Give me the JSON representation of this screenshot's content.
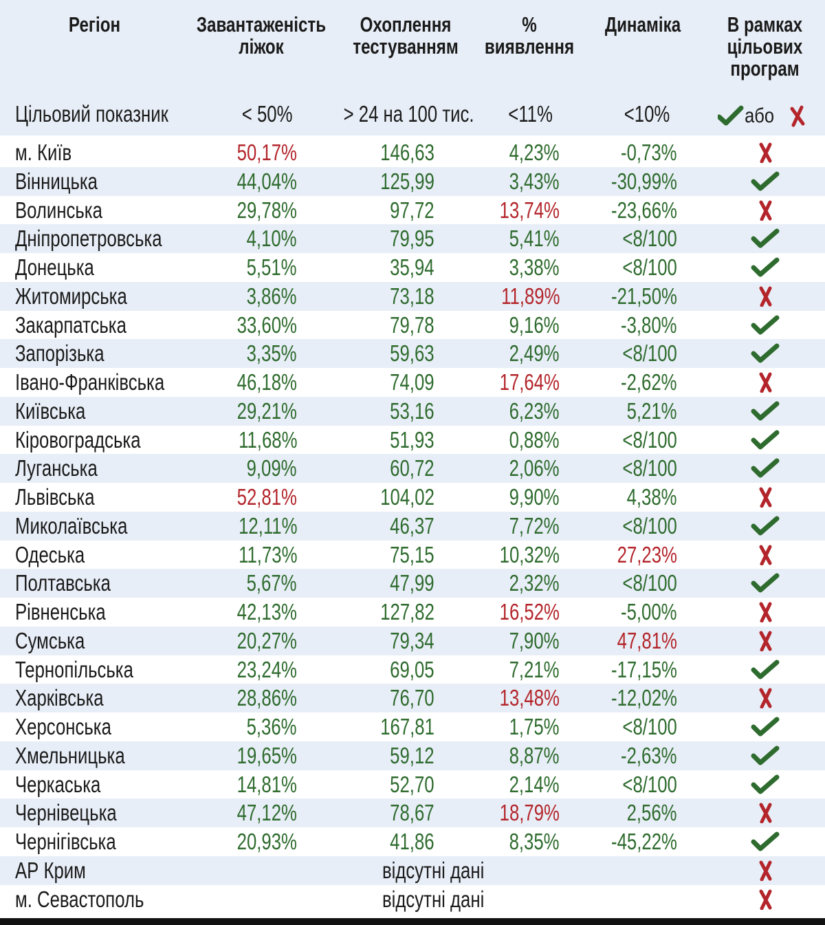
{
  "header": {
    "region": "Регіон",
    "beds_line1": "Завантаженість",
    "beds_line2": "ліжок",
    "testing_line1": "Охоплення",
    "testing_line2": "тестуванням",
    "detection_line1": "%",
    "detection_line2": "виявлення",
    "dynamics": "Динаміка",
    "programs_line1": "В рамках",
    "programs_line2": "цільових",
    "programs_line3": "програм"
  },
  "target": {
    "label": "Цільовий показник",
    "beds": "< 50%",
    "testing": "> 24 на 100 тис.",
    "detection": "<11%",
    "dynamics": "<10%",
    "or_word": "або"
  },
  "colors": {
    "ok": "#2e6b2e",
    "bad": "#b3252b",
    "band": "#e8eef7"
  },
  "rows": [
    {
      "region": "м. Київ",
      "beds": "50,17%",
      "beds_ok": false,
      "testing": "146,63",
      "detection": "4,23%",
      "detection_ok": true,
      "dynamics": "-0,73%",
      "dynamics_ok": true,
      "in_program": false
    },
    {
      "region": "Вінницька",
      "beds": "44,04%",
      "beds_ok": true,
      "testing": "125,99",
      "detection": "3,43%",
      "detection_ok": true,
      "dynamics": "-30,99%",
      "dynamics_ok": true,
      "in_program": true
    },
    {
      "region": "Волинська",
      "beds": "29,78%",
      "beds_ok": true,
      "testing": "97,72",
      "detection": "13,74%",
      "detection_ok": false,
      "dynamics": "-23,66%",
      "dynamics_ok": true,
      "in_program": false
    },
    {
      "region": "Дніпропетровська",
      "beds": "4,10%",
      "beds_ok": true,
      "testing": "79,95",
      "detection": "5,41%",
      "detection_ok": true,
      "dynamics": "<8/100",
      "dynamics_ok": true,
      "in_program": true
    },
    {
      "region": "Донецька",
      "beds": "5,51%",
      "beds_ok": true,
      "testing": "35,94",
      "detection": "3,38%",
      "detection_ok": true,
      "dynamics": "<8/100",
      "dynamics_ok": true,
      "in_program": true
    },
    {
      "region": "Житомирська",
      "beds": "3,86%",
      "beds_ok": true,
      "testing": "73,18",
      "detection": "11,89%",
      "detection_ok": false,
      "dynamics": "-21,50%",
      "dynamics_ok": true,
      "in_program": false
    },
    {
      "region": "Закарпатська",
      "beds": "33,60%",
      "beds_ok": true,
      "testing": "79,78",
      "detection": "9,16%",
      "detection_ok": true,
      "dynamics": "-3,80%",
      "dynamics_ok": true,
      "in_program": true
    },
    {
      "region": "Запорізька",
      "beds": "3,35%",
      "beds_ok": true,
      "testing": "59,63",
      "detection": "2,49%",
      "detection_ok": true,
      "dynamics": "<8/100",
      "dynamics_ok": true,
      "in_program": true
    },
    {
      "region": "Івано-Франківська",
      "beds": "46,18%",
      "beds_ok": true,
      "testing": "74,09",
      "detection": "17,64%",
      "detection_ok": false,
      "dynamics": "-2,62%",
      "dynamics_ok": true,
      "in_program": false
    },
    {
      "region": "Київська",
      "beds": "29,21%",
      "beds_ok": true,
      "testing": "53,16",
      "detection": "6,23%",
      "detection_ok": true,
      "dynamics": "5,21%",
      "dynamics_ok": true,
      "in_program": true
    },
    {
      "region": "Кіровоградська",
      "beds": "11,68%",
      "beds_ok": true,
      "testing": "51,93",
      "detection": "0,88%",
      "detection_ok": true,
      "dynamics": "<8/100",
      "dynamics_ok": true,
      "in_program": true
    },
    {
      "region": "Луганська",
      "beds": "9,09%",
      "beds_ok": true,
      "testing": "60,72",
      "detection": "2,06%",
      "detection_ok": true,
      "dynamics": "<8/100",
      "dynamics_ok": true,
      "in_program": true
    },
    {
      "region": "Львівська",
      "beds": "52,81%",
      "beds_ok": false,
      "testing": "104,02",
      "detection": "9,90%",
      "detection_ok": true,
      "dynamics": "4,38%",
      "dynamics_ok": true,
      "in_program": false
    },
    {
      "region": "Миколаївська",
      "beds": "12,11%",
      "beds_ok": true,
      "testing": "46,37",
      "detection": "7,72%",
      "detection_ok": true,
      "dynamics": "<8/100",
      "dynamics_ok": true,
      "in_program": true
    },
    {
      "region": "Одеська",
      "beds": "11,73%",
      "beds_ok": true,
      "testing": "75,15",
      "detection": "10,32%",
      "detection_ok": true,
      "dynamics": "27,23%",
      "dynamics_ok": false,
      "in_program": false
    },
    {
      "region": "Полтавська",
      "beds": "5,67%",
      "beds_ok": true,
      "testing": "47,99",
      "detection": "2,32%",
      "detection_ok": true,
      "dynamics": "<8/100",
      "dynamics_ok": true,
      "in_program": true
    },
    {
      "region": "Рівненська",
      "beds": "42,13%",
      "beds_ok": true,
      "testing": "127,82",
      "detection": "16,52%",
      "detection_ok": false,
      "dynamics": "-5,00%",
      "dynamics_ok": true,
      "in_program": false
    },
    {
      "region": "Сумська",
      "beds": "20,27%",
      "beds_ok": true,
      "testing": "79,34",
      "detection": "7,90%",
      "detection_ok": true,
      "dynamics": "47,81%",
      "dynamics_ok": false,
      "in_program": false
    },
    {
      "region": "Тернопільська",
      "beds": "23,24%",
      "beds_ok": true,
      "testing": "69,05",
      "detection": "7,21%",
      "detection_ok": true,
      "dynamics": "-17,15%",
      "dynamics_ok": true,
      "in_program": true
    },
    {
      "region": "Харківська",
      "beds": "28,86%",
      "beds_ok": true,
      "testing": "76,70",
      "detection": "13,48%",
      "detection_ok": false,
      "dynamics": "-12,02%",
      "dynamics_ok": true,
      "in_program": false
    },
    {
      "region": "Херсонська",
      "beds": "5,36%",
      "beds_ok": true,
      "testing": "167,81",
      "detection": "1,75%",
      "detection_ok": true,
      "dynamics": "<8/100",
      "dynamics_ok": true,
      "in_program": true
    },
    {
      "region": "Хмельницька",
      "beds": "19,65%",
      "beds_ok": true,
      "testing": "59,12",
      "detection": "8,87%",
      "detection_ok": true,
      "dynamics": "-2,63%",
      "dynamics_ok": true,
      "in_program": true
    },
    {
      "region": "Черкаська",
      "beds": "14,81%",
      "beds_ok": true,
      "testing": "52,70",
      "detection": "2,14%",
      "detection_ok": true,
      "dynamics": "<8/100",
      "dynamics_ok": true,
      "in_program": true
    },
    {
      "region": "Чернівецька",
      "beds": "47,12%",
      "beds_ok": true,
      "testing": "78,67",
      "detection": "18,79%",
      "detection_ok": false,
      "dynamics": "2,56%",
      "dynamics_ok": true,
      "in_program": false
    },
    {
      "region": "Чернігівська",
      "beds": "20,93%",
      "beds_ok": true,
      "testing": "41,86",
      "detection": "8,35%",
      "detection_ok": true,
      "dynamics": "-45,22%",
      "dynamics_ok": true,
      "in_program": true
    },
    {
      "region": "АР Крим",
      "missing": "відсутні дані",
      "in_program": false
    },
    {
      "region": "м. Севастополь",
      "missing": "відсутні дані",
      "in_program": false
    }
  ]
}
